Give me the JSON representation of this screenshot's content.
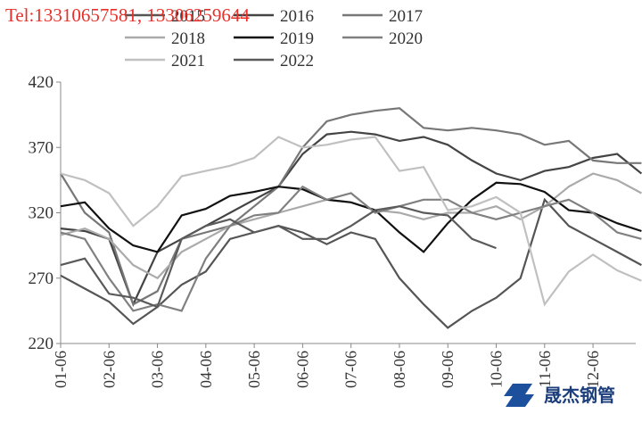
{
  "chart_data": {
    "type": "line",
    "watermark": "Tel:13310657581, 13306259644",
    "logo_text": "晟杰钢管",
    "categories": [
      "01-06",
      null,
      "02-06",
      null,
      "03-06",
      null,
      "04-06",
      null,
      "05-06",
      null,
      "06-06",
      null,
      "07-06",
      null,
      "08-06",
      null,
      "09-06",
      null,
      "10-06",
      null,
      "11-06",
      null,
      "12-06",
      null,
      null
    ],
    "ylim": [
      220,
      420
    ],
    "yticks": [
      220,
      270,
      320,
      370,
      420
    ],
    "series": [
      {
        "name": "2015",
        "color": "#555555",
        "values": [
          272,
          262,
          252,
          235,
          248,
          265,
          275,
          300,
          305,
          310,
          305,
          296,
          305,
          300,
          270,
          250,
          232,
          245,
          255,
          270,
          330,
          310,
          300,
          290,
          280
        ]
      },
      {
        "name": "2016",
        "color": "#444444",
        "values": [
          308,
          306,
          300,
          250,
          290,
          300,
          310,
          320,
          330,
          340,
          365,
          380,
          382,
          380,
          375,
          378,
          372,
          360,
          350,
          345,
          352,
          355,
          362,
          365,
          350
        ]
      },
      {
        "name": "2017",
        "color": "#777777",
        "values": [
          350,
          320,
          305,
          250,
          260,
          300,
          305,
          310,
          325,
          340,
          370,
          390,
          395,
          398,
          400,
          385,
          383,
          385,
          383,
          380,
          372,
          375,
          360,
          358,
          358
        ]
      },
      {
        "name": "2018",
        "color": "#aaaaaa",
        "values": [
          303,
          308,
          300,
          280,
          270,
          290,
          300,
          310,
          315,
          320,
          325,
          330,
          328,
          322,
          320,
          315,
          320,
          320,
          325,
          315,
          325,
          340,
          350,
          345,
          335
        ]
      },
      {
        "name": "2019",
        "color": "#111111",
        "values": [
          325,
          328,
          308,
          295,
          290,
          318,
          323,
          333,
          336,
          340,
          338,
          330,
          328,
          322,
          305,
          290,
          312,
          330,
          343,
          342,
          336,
          322,
          320,
          312,
          306
        ]
      },
      {
        "name": "2020",
        "color": "#808080",
        "values": [
          305,
          300,
          270,
          245,
          250,
          245,
          285,
          310,
          318,
          320,
          340,
          330,
          335,
          320,
          325,
          330,
          330,
          320,
          315,
          320,
          325,
          330,
          320,
          305,
          300
        ]
      },
      {
        "name": "2021",
        "color": "#c0c0c0",
        "values": [
          350,
          345,
          335,
          310,
          325,
          348,
          352,
          356,
          362,
          378,
          370,
          372,
          376,
          378,
          352,
          355,
          322,
          325,
          332,
          320,
          250,
          275,
          288,
          276,
          268
        ]
      },
      {
        "name": "2022",
        "color": "#5a5a5a",
        "values": [
          280,
          285,
          258,
          255,
          248,
          300,
          310,
          315,
          305,
          310,
          300,
          300,
          310,
          322,
          325,
          320,
          318,
          300,
          293,
          null,
          null,
          null,
          null,
          null,
          null
        ]
      }
    ]
  }
}
